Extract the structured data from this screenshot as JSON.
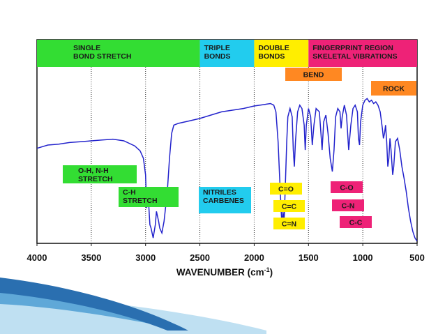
{
  "chart_data": {
    "type": "line",
    "title": "",
    "xlabel": "WAVENUMBER (cm",
    "xlabel_superscript": "-1",
    "xlabel_suffix": ")",
    "xlim": [
      4000,
      500
    ],
    "x_reversed": true,
    "ylabel": "",
    "x_ticks": [
      4000,
      3500,
      3000,
      2500,
      2000,
      1500,
      1000,
      500
    ],
    "x_tick_labels": [
      "4000",
      "3500",
      "3000",
      "2500",
      "2000",
      "1500",
      "1000",
      "500"
    ],
    "grid": "vertical dotted",
    "regions": [
      {
        "from": 4000,
        "to": 2500,
        "lines": [
          "SINGLE",
          "BOND STRETCH"
        ],
        "color": "#33dd33"
      },
      {
        "from": 2500,
        "to": 2000,
        "lines": [
          "TRIPLE",
          "BONDS"
        ],
        "color": "#22ccee"
      },
      {
        "from": 2000,
        "to": 1500,
        "lines": [
          "DOUBLE",
          "BONDS"
        ],
        "color": "#ffee00"
      },
      {
        "from": 1500,
        "to": 500,
        "lines": [
          "FINGERPRINT REGION",
          "SKELETAL VIBRATIONS"
        ],
        "color": "#ee2277"
      }
    ],
    "annotations": [
      {
        "id": "oh-nh",
        "lines": [
          "O-H, N-H",
          "STRETCH"
        ],
        "color": "#33dd33"
      },
      {
        "id": "ch",
        "lines": [
          "C-H",
          "STRETCH"
        ],
        "color": "#33dd33"
      },
      {
        "id": "nitriles",
        "lines": [
          "NITRILES",
          "CARBENES"
        ],
        "color": "#22ccee"
      },
      {
        "id": "co-double",
        "lines": [
          "C=O"
        ],
        "color": "#ffee00"
      },
      {
        "id": "cc-double",
        "lines": [
          "C=C"
        ],
        "color": "#ffee00"
      },
      {
        "id": "cn-double",
        "lines": [
          "C=N"
        ],
        "color": "#ffee00"
      },
      {
        "id": "co-single",
        "lines": [
          "C-O"
        ],
        "color": "#ee2277"
      },
      {
        "id": "cn-single",
        "lines": [
          "C-N"
        ],
        "color": "#ee2277"
      },
      {
        "id": "cc-single",
        "lines": [
          "C-C"
        ],
        "color": "#ee2277"
      },
      {
        "id": "bend",
        "lines": [
          "BEND"
        ],
        "color": "#ff8822"
      },
      {
        "id": "rock",
        "lines": [
          "ROCK"
        ],
        "color": "#ff8822"
      }
    ],
    "series": [
      {
        "color": "#2222cc",
        "points": [
          [
            4000,
            0.56
          ],
          [
            3900,
            0.58
          ],
          [
            3800,
            0.585
          ],
          [
            3700,
            0.595
          ],
          [
            3600,
            0.6
          ],
          [
            3500,
            0.605
          ],
          [
            3400,
            0.61
          ],
          [
            3300,
            0.615
          ],
          [
            3200,
            0.605
          ],
          [
            3100,
            0.575
          ],
          [
            3050,
            0.545
          ],
          [
            3020,
            0.5
          ],
          [
            3000,
            0.4
          ],
          [
            2990,
            0.2
          ],
          [
            2980,
            0.32
          ],
          [
            2960,
            0.1
          ],
          [
            2950,
            0.08
          ],
          [
            2930,
            0.02
          ],
          [
            2910,
            0.1
          ],
          [
            2900,
            0.18
          ],
          [
            2880,
            0.12
          ],
          [
            2870,
            0.08
          ],
          [
            2850,
            0.05
          ],
          [
            2830,
            0.12
          ],
          [
            2800,
            0.3
          ],
          [
            2780,
            0.5
          ],
          [
            2760,
            0.65
          ],
          [
            2740,
            0.7
          ],
          [
            2700,
            0.71
          ],
          [
            2600,
            0.725
          ],
          [
            2500,
            0.74
          ],
          [
            2400,
            0.76
          ],
          [
            2300,
            0.78
          ],
          [
            2200,
            0.79
          ],
          [
            2100,
            0.8
          ],
          [
            2000,
            0.815
          ],
          [
            1900,
            0.825
          ],
          [
            1850,
            0.83
          ],
          [
            1820,
            0.82
          ],
          [
            1800,
            0.78
          ],
          [
            1780,
            0.6
          ],
          [
            1760,
            0.3
          ],
          [
            1745,
            0.1
          ],
          [
            1735,
            0.18
          ],
          [
            1725,
            0.12
          ],
          [
            1715,
            0.3
          ],
          [
            1700,
            0.6
          ],
          [
            1690,
            0.75
          ],
          [
            1670,
            0.8
          ],
          [
            1650,
            0.75
          ],
          [
            1640,
            0.55
          ],
          [
            1630,
            0.45
          ],
          [
            1620,
            0.6
          ],
          [
            1600,
            0.78
          ],
          [
            1580,
            0.82
          ],
          [
            1560,
            0.8
          ],
          [
            1540,
            0.7
          ],
          [
            1530,
            0.55
          ],
          [
            1520,
            0.7
          ],
          [
            1500,
            0.8
          ],
          [
            1480,
            0.75
          ],
          [
            1465,
            0.58
          ],
          [
            1450,
            0.7
          ],
          [
            1430,
            0.8
          ],
          [
            1400,
            0.78
          ],
          [
            1380,
            0.6
          ],
          [
            1375,
            0.55
          ],
          [
            1360,
            0.72
          ],
          [
            1340,
            0.76
          ],
          [
            1320,
            0.65
          ],
          [
            1300,
            0.5
          ],
          [
            1280,
            0.42
          ],
          [
            1265,
            0.55
          ],
          [
            1250,
            0.75
          ],
          [
            1230,
            0.8
          ],
          [
            1210,
            0.78
          ],
          [
            1200,
            0.68
          ],
          [
            1190,
            0.75
          ],
          [
            1170,
            0.82
          ],
          [
            1150,
            0.76
          ],
          [
            1130,
            0.55
          ],
          [
            1110,
            0.7
          ],
          [
            1090,
            0.8
          ],
          [
            1070,
            0.82
          ],
          [
            1050,
            0.78
          ],
          [
            1040,
            0.62
          ],
          [
            1030,
            0.58
          ],
          [
            1020,
            0.72
          ],
          [
            1000,
            0.82
          ],
          [
            980,
            0.85
          ],
          [
            960,
            0.86
          ],
          [
            940,
            0.84
          ],
          [
            920,
            0.85
          ],
          [
            900,
            0.83
          ],
          [
            880,
            0.84
          ],
          [
            860,
            0.82
          ],
          [
            840,
            0.78
          ],
          [
            820,
            0.68
          ],
          [
            810,
            0.62
          ],
          [
            800,
            0.65
          ],
          [
            790,
            0.7
          ],
          [
            780,
            0.6
          ],
          [
            770,
            0.45
          ],
          [
            760,
            0.5
          ],
          [
            750,
            0.62
          ],
          [
            740,
            0.55
          ],
          [
            725,
            0.4
          ],
          [
            715,
            0.45
          ],
          [
            700,
            0.6
          ],
          [
            680,
            0.62
          ],
          [
            660,
            0.55
          ],
          [
            640,
            0.45
          ],
          [
            620,
            0.38
          ],
          [
            600,
            0.3
          ],
          [
            580,
            0.2
          ],
          [
            560,
            0.12
          ],
          [
            540,
            0.06
          ],
          [
            520,
            0.02
          ],
          [
            500,
            0.0
          ]
        ]
      }
    ]
  },
  "decor": {
    "swoosh_colors": [
      "#2a6fb0",
      "#5fa8d8",
      "#bfe0f2"
    ]
  }
}
